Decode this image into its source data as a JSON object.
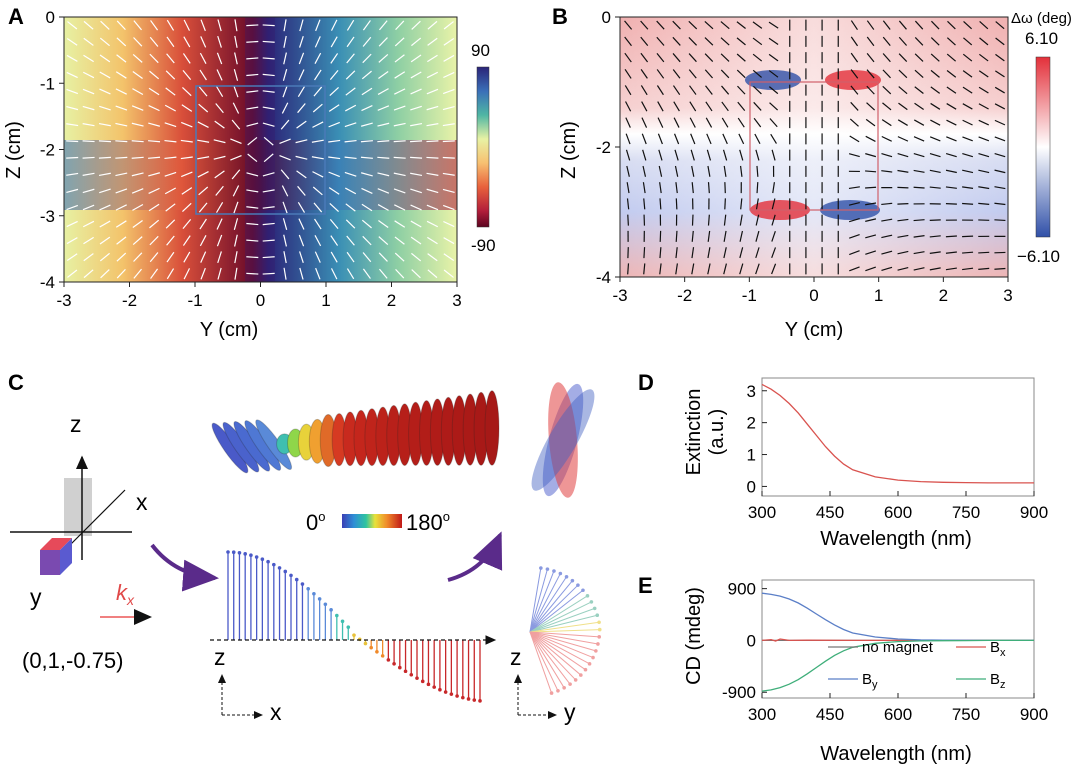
{
  "panels": {
    "a": "A",
    "b": "B",
    "c": "C",
    "d": "D",
    "e": "E"
  },
  "panel_a": {
    "xticks": [
      "-3",
      "-2",
      "-1",
      "0",
      "1",
      "2",
      "3"
    ],
    "yticks": [
      "0",
      "-1",
      "-2",
      "-3",
      "-4"
    ],
    "xlabel": "Y (cm)",
    "ylabel": "Z (cm)",
    "cbar_max": "90",
    "cbar_min": "-90"
  },
  "panel_b": {
    "xticks": [
      "-3",
      "-2",
      "-1",
      "0",
      "1",
      "2",
      "3"
    ],
    "yticks": [
      "0",
      "-2",
      "-4"
    ],
    "xlabel": "Y (cm)",
    "ylabel": "Z (cm)",
    "cbar_title": "Δω (deg)",
    "cbar_max": "6.10",
    "cbar_min": "−6.10"
  },
  "panel_c": {
    "axis_z": "z",
    "axis_x": "x",
    "axis_y": "y",
    "k_label": "k",
    "k_sub": "x",
    "coords": "(0,1,-0.75)",
    "angle_min": "0",
    "angle_max": "180",
    "deg": "o",
    "bl_z": "z",
    "bl_x": "x",
    "br_z": "z",
    "br_y": "y"
  },
  "colors": {
    "red": "#d9534f",
    "blue": "#5b7fc7",
    "green": "#3fae7a",
    "gray": "#777777"
  },
  "chart_data": [
    {
      "id": "A",
      "type": "heatmap",
      "title": "",
      "xlabel": "Y (cm)",
      "ylabel": "Z (cm)",
      "xlim": [
        -3,
        3
      ],
      "ylim": [
        -4,
        0
      ],
      "colorbar": {
        "min": -90,
        "max": 90,
        "colormap": "spectral"
      }
    },
    {
      "id": "B",
      "type": "heatmap",
      "title": "",
      "xlabel": "Y (cm)",
      "ylabel": "Z (cm)",
      "xlim": [
        -3,
        3
      ],
      "ylim": [
        -4,
        0
      ],
      "colorbar": {
        "label": "Δω (deg)",
        "min": -6.1,
        "max": 6.1,
        "colormap": "bwr"
      }
    },
    {
      "id": "D",
      "type": "line",
      "xlabel": "Wavelength (nm)",
      "ylabel": "Extinction\n(a.u.)",
      "ylabel_lines": [
        "Extinction",
        "(a.u.)"
      ],
      "xlim": [
        300,
        900
      ],
      "ylim": [
        -0.3,
        3.4
      ],
      "xticks": [
        "300",
        "450",
        "600",
        "750",
        "900"
      ],
      "yticks": [
        "0",
        "1",
        "2",
        "3"
      ],
      "series": [
        {
          "name": "extinction",
          "color": "#d9534f",
          "x": [
            300,
            320,
            340,
            360,
            380,
            400,
            420,
            440,
            460,
            480,
            500,
            550,
            600,
            650,
            700,
            750,
            800,
            850,
            900
          ],
          "y": [
            3.2,
            3.05,
            2.85,
            2.6,
            2.3,
            1.95,
            1.6,
            1.25,
            0.95,
            0.7,
            0.52,
            0.3,
            0.2,
            0.15,
            0.13,
            0.12,
            0.11,
            0.11,
            0.11
          ]
        }
      ]
    },
    {
      "id": "E",
      "type": "line",
      "xlabel": "Wavelength (nm)",
      "ylabel": "CD (mdeg)",
      "xlim": [
        300,
        900
      ],
      "ylim": [
        -1000,
        1050
      ],
      "xticks": [
        "300",
        "450",
        "600",
        "750",
        "900"
      ],
      "yticks": [
        "900",
        "0",
        "-900"
      ],
      "legend": [
        {
          "name": "no magnet",
          "color": "#777777"
        },
        {
          "name": "B",
          "sub": "x",
          "color": "#d9534f"
        },
        {
          "name": "B",
          "sub": "y",
          "color": "#5b7fc7"
        },
        {
          "name": "B",
          "sub": "z",
          "color": "#3fae7a"
        }
      ],
      "series": [
        {
          "name": "no magnet",
          "color": "#777777",
          "x": [
            300,
            450,
            600,
            750,
            900
          ],
          "y": [
            0,
            0,
            0,
            0,
            0
          ]
        },
        {
          "name": "Bx",
          "color": "#d9534f",
          "x": [
            300,
            320,
            330,
            340,
            360,
            400,
            500,
            600,
            750,
            900
          ],
          "y": [
            0,
            15,
            -10,
            25,
            0,
            5,
            0,
            0,
            0,
            0
          ]
        },
        {
          "name": "By",
          "color": "#5b7fc7",
          "x": [
            300,
            320,
            340,
            360,
            380,
            400,
            420,
            440,
            460,
            480,
            500,
            550,
            600,
            650,
            700,
            750,
            800,
            850,
            900
          ],
          "y": [
            820,
            800,
            770,
            720,
            650,
            560,
            460,
            360,
            270,
            190,
            130,
            60,
            25,
            10,
            5,
            2,
            0,
            0,
            0
          ]
        },
        {
          "name": "Bz",
          "color": "#3fae7a",
          "x": [
            300,
            320,
            340,
            360,
            380,
            400,
            420,
            440,
            460,
            480,
            500,
            550,
            600,
            650,
            700,
            750,
            800,
            850,
            900
          ],
          "y": [
            -880,
            -860,
            -820,
            -760,
            -680,
            -580,
            -470,
            -360,
            -260,
            -180,
            -120,
            -50,
            -20,
            -8,
            -4,
            -2,
            0,
            0,
            0
          ]
        }
      ]
    }
  ]
}
